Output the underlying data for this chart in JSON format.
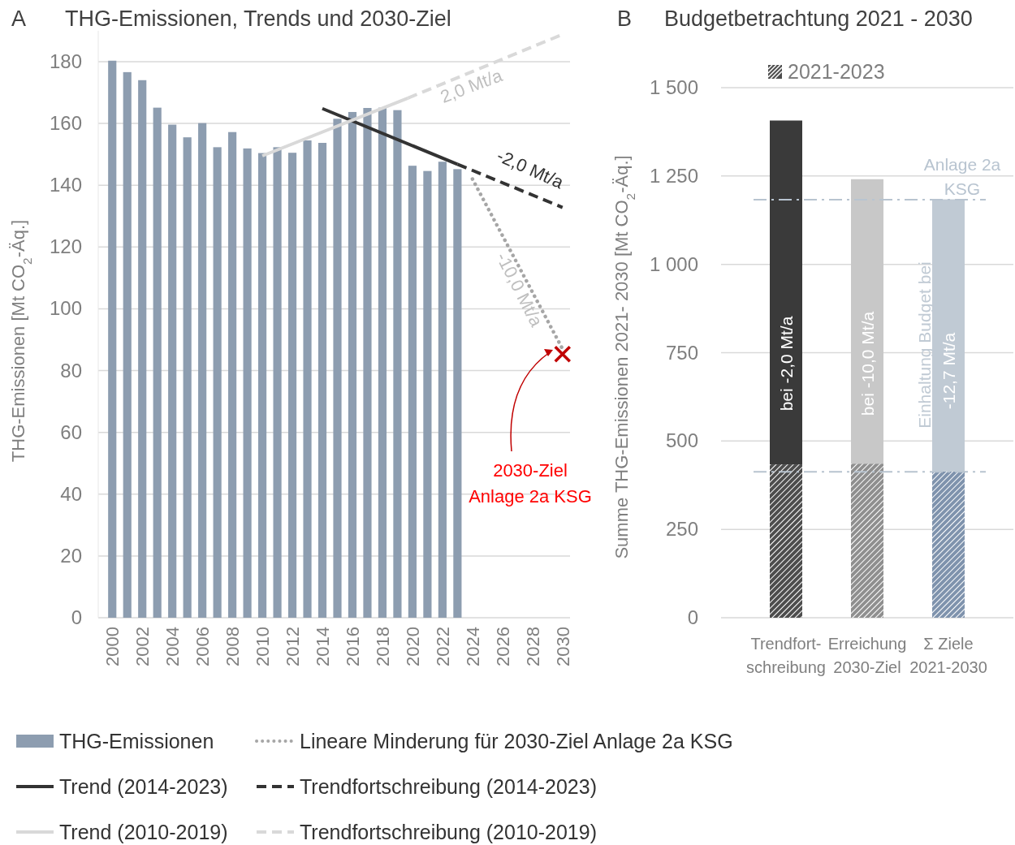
{
  "chart_data": [
    {
      "type": "bar",
      "title": "THG-Emissionen, Trends und 2030-Ziel",
      "ylabel": "THG-Emissionen  [Mt CO$_{2}$-Äq.]",
      "xlim": [
        1999.5,
        2030.5
      ],
      "xticks": [
        2000,
        2002,
        2004,
        2006,
        2008,
        2010,
        2012,
        2014,
        2016,
        2018,
        2020,
        2022,
        2024,
        2026,
        2028,
        2030
      ],
      "ylim": [
        0,
        190
      ],
      "yticks": [
        0,
        20,
        40,
        60,
        80,
        100,
        120,
        140,
        160,
        180
      ],
      "grid": "y",
      "legend": "bottom",
      "series": [
        {
          "name": "THG-Emissionen",
          "color": "#8d9db0",
          "x": [
            2000,
            2001,
            2002,
            2003,
            2004,
            2005,
            2006,
            2007,
            2008,
            2009,
            2010,
            2011,
            2012,
            2013,
            2014,
            2015,
            2016,
            2017,
            2018,
            2019,
            2020,
            2021,
            2022,
            2023
          ],
          "values": [
            180.3,
            176.6,
            174.0,
            165.1,
            159.6,
            155.5,
            160.1,
            152.3,
            157.2,
            151.9,
            150.4,
            152.3,
            150.5,
            154.5,
            153.7,
            161.5,
            163.7,
            165.0,
            165.1,
            164.3,
            146.3,
            144.6,
            147.6,
            145.2
          ]
        },
        {
          "name": "Trend (2014-2023)",
          "type": "line",
          "color": "#333333",
          "line_style": "solid",
          "x": [
            2014,
            2023
          ],
          "values": [
            164.8,
            146.8
          ]
        },
        {
          "name": "Trend (2010-2019)",
          "type": "line",
          "color": "#d9d9d9",
          "line_style": "solid",
          "x": [
            2010,
            2019.7
          ],
          "values": [
            149.5,
            168.2
          ]
        },
        {
          "name": "Lineare Minderung für 2030-Ziel Anlage 2a KSG",
          "type": "line",
          "color": "#a6a6a6",
          "line_style": "dotted",
          "x": [
            2024,
            2030
          ],
          "values": [
            142,
            87
          ]
        },
        {
          "name": "Trendfortschreibung (2014-2023)",
          "type": "line",
          "color": "#333333",
          "line_style": "dashed",
          "x": [
            2023,
            2030
          ],
          "values": [
            146.8,
            132.8
          ]
        },
        {
          "name": "Trendfortschreibung (2010-2019)",
          "type": "line",
          "color": "#d9d9d9",
          "line_style": "dashed",
          "x": [
            2019.7,
            2030
          ],
          "values": [
            168.2,
            188.8
          ]
        },
        {
          "type": "scatter",
          "marker": "cross",
          "color": "#c00000",
          "x": [
            2030
          ],
          "values": [
            85.3
          ]
        }
      ],
      "annotations": [
        "A",
        "2,0 Mt/a",
        "-2,0 Mt/a",
        "-10,0 Mt/a",
        "2030-Ziel\nAnlage 2a KSG"
      ]
    },
    {
      "type": "bar",
      "title": "Budgetbetrachtung 2021 - 2030",
      "ylabel": "Summe THG-Emissionen  2021- 2030 [Mt CO$_{2}$-Äq.]",
      "categories": [
        "Trendfort-\nschreibung",
        "Erreichung\n2030-Ziel",
        "Σ Ziele\n2021-2030"
      ],
      "ylim": [
        0,
        1500
      ],
      "yticks": [
        0,
        250,
        500,
        750,
        {
          "value": 1000,
          "label": "1 000"
        },
        {
          "value": 1250,
          "label": "1 250"
        },
        {
          "value": 1500,
          "label": "1 500"
        }
      ],
      "grid": "y",
      "stacked": true,
      "legend": "top",
      "series": [
        {
          "name": "2021-2023",
          "colors": [
            "#4d4d4d",
            "#8f8f8f",
            "#7f93ad"
          ],
          "values": [
            434,
            436,
            414
          ]
        },
        {
          "colors": [
            "#3a3a3a",
            "#c8c8c8",
            "#c0cad4"
          ],
          "values": [
            973,
            805,
            770
          ]
        }
      ],
      "ref_lines": [
        {
          "axis": "y",
          "value": 1183,
          "label": "Anlage 2a\nKSG",
          "color": "#b8c4d0",
          "line_style": "dashed"
        },
        {
          "axis": "y",
          "value": 413,
          "color": "#b8c4d0",
          "line_style": "dashed"
        }
      ],
      "annotations": [
        "B",
        "bei  -2,0 Mt/a",
        "bei  -10,0 Mt/a",
        "Einhaltung Budget bei",
        "-12,7 Mt/a"
      ]
    }
  ]
}
